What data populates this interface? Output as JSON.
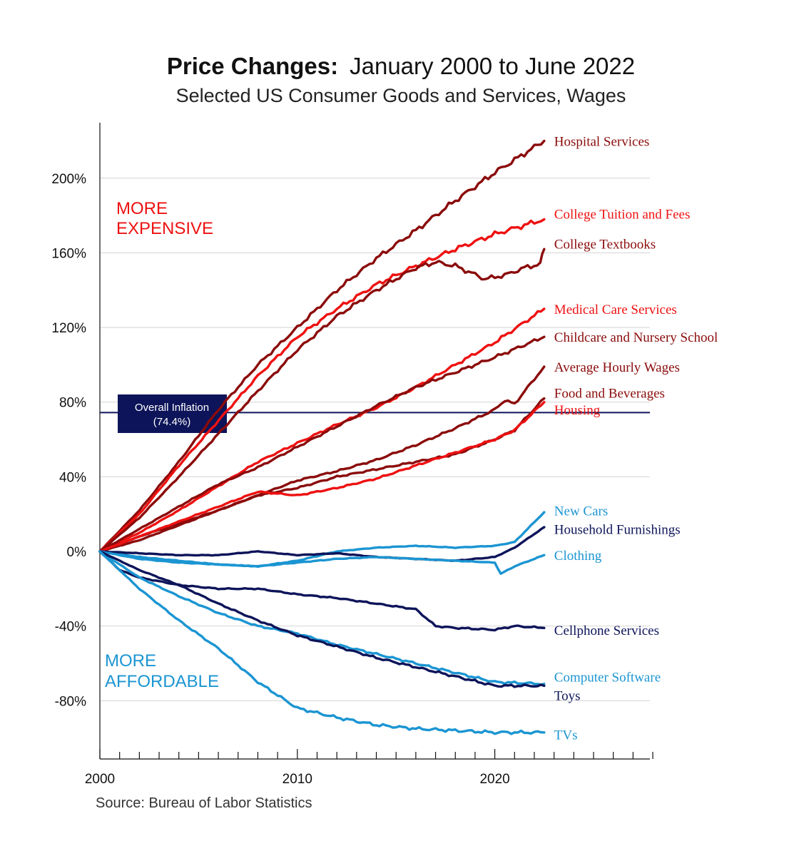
{
  "title": {
    "bold": "Price Changes:",
    "rest": "January 2000 to June 2022"
  },
  "subtitle": "Selected US Consumer Goods and Services, Wages",
  "source": "Source: Bureau of Labor Statistics",
  "region_labels": {
    "expensive": [
      "MORE",
      "EXPENSIVE"
    ],
    "affordable": [
      "MORE",
      "AFFORDABLE"
    ]
  },
  "inflation": {
    "label_lines": [
      "Overall Inflation",
      "(74.4%)"
    ],
    "value": 74.4,
    "color": "#0d1459"
  },
  "colors": {
    "dark_red": "#8b0b0b",
    "red": "#ee1111",
    "navy": "#0d1459",
    "light_blue": "#1b95d2",
    "expensive_label": "#ee1111",
    "affordable_label": "#1b95d2"
  },
  "chart_data": {
    "type": "line",
    "title": "Price Changes: January 2000 to June 2022",
    "xlabel": "",
    "ylabel": "",
    "xlim": [
      2000,
      2028
    ],
    "ylim": [
      -110,
      225
    ],
    "y_ticks": [
      200,
      160,
      120,
      80,
      40,
      0,
      -40,
      -80
    ],
    "y_tick_labels": [
      "200%",
      "160%",
      "120%",
      "80%",
      "40%",
      "0%",
      "-40%",
      "-80%"
    ],
    "x_ticks": [
      2000,
      2010,
      2020
    ],
    "x_tick_labels": [
      "2000",
      "2010",
      "2020"
    ],
    "grid": true,
    "series": [
      {
        "name": "Hospital Services",
        "color": "#8b0b0b",
        "label_y": 220,
        "points": [
          [
            2000,
            0
          ],
          [
            2002,
            22
          ],
          [
            2004,
            48
          ],
          [
            2006,
            76
          ],
          [
            2008,
            100
          ],
          [
            2010,
            120
          ],
          [
            2012,
            140
          ],
          [
            2014,
            157
          ],
          [
            2016,
            172
          ],
          [
            2018,
            188
          ],
          [
            2020,
            203
          ],
          [
            2022.5,
            220
          ]
        ]
      },
      {
        "name": "College Tuition and Fees",
        "color": "#ee1111",
        "label_y": 181,
        "points": [
          [
            2000,
            0
          ],
          [
            2002,
            20
          ],
          [
            2004,
            46
          ],
          [
            2006,
            70
          ],
          [
            2008,
            94
          ],
          [
            2010,
            115
          ],
          [
            2012,
            130
          ],
          [
            2014,
            143
          ],
          [
            2016,
            153
          ],
          [
            2018,
            162
          ],
          [
            2020,
            170
          ],
          [
            2022.5,
            178
          ]
        ]
      },
      {
        "name": "College Textbooks",
        "color": "#8b0b0b",
        "label_y": 165,
        "points": [
          [
            2000,
            0
          ],
          [
            2002,
            18
          ],
          [
            2004,
            40
          ],
          [
            2006,
            63
          ],
          [
            2008,
            86
          ],
          [
            2010,
            108
          ],
          [
            2012,
            126
          ],
          [
            2014,
            140
          ],
          [
            2016,
            152
          ],
          [
            2017,
            155
          ],
          [
            2018,
            153
          ],
          [
            2019.5,
            146
          ],
          [
            2020.5,
            148
          ],
          [
            2021.5,
            152
          ],
          [
            2022.3,
            154
          ],
          [
            2022.5,
            162
          ]
        ]
      },
      {
        "name": "Medical Care Services",
        "color": "#ee1111",
        "label_y": 130,
        "points": [
          [
            2000,
            0
          ],
          [
            2002,
            10
          ],
          [
            2004,
            22
          ],
          [
            2006,
            35
          ],
          [
            2008,
            48
          ],
          [
            2010,
            58
          ],
          [
            2012,
            68
          ],
          [
            2014,
            77
          ],
          [
            2016,
            88
          ],
          [
            2018,
            100
          ],
          [
            2020,
            112
          ],
          [
            2022.5,
            130
          ]
        ]
      },
      {
        "name": "Childcare and Nursery School",
        "color": "#8b0b0b",
        "label_y": 115,
        "points": [
          [
            2000,
            0
          ],
          [
            2002,
            12
          ],
          [
            2004,
            24
          ],
          [
            2006,
            36
          ],
          [
            2008,
            45
          ],
          [
            2010,
            56
          ],
          [
            2012,
            67
          ],
          [
            2014,
            78
          ],
          [
            2016,
            88
          ],
          [
            2018,
            96
          ],
          [
            2020,
            104
          ],
          [
            2022.5,
            115
          ]
        ]
      },
      {
        "name": "Average Hourly Wages",
        "color": "#8b0b0b",
        "label_y": 99,
        "points": [
          [
            2000,
            0
          ],
          [
            2002,
            8
          ],
          [
            2004,
            15
          ],
          [
            2006,
            22
          ],
          [
            2008,
            30
          ],
          [
            2010,
            38
          ],
          [
            2012,
            43
          ],
          [
            2014,
            49
          ],
          [
            2016,
            57
          ],
          [
            2018,
            66
          ],
          [
            2020,
            76
          ],
          [
            2020.5,
            81
          ],
          [
            2021,
            79
          ],
          [
            2022.5,
            99
          ]
        ]
      },
      {
        "name": "Food and Beverages",
        "color": "#8b0b0b",
        "label_y": 85,
        "points": [
          [
            2000,
            0
          ],
          [
            2002,
            6
          ],
          [
            2004,
            14
          ],
          [
            2006,
            22
          ],
          [
            2008,
            30
          ],
          [
            2010,
            34
          ],
          [
            2012,
            40
          ],
          [
            2014,
            44
          ],
          [
            2016,
            48
          ],
          [
            2018,
            52
          ],
          [
            2020,
            60
          ],
          [
            2021,
            65
          ],
          [
            2022.5,
            82
          ]
        ]
      },
      {
        "name": "Housing",
        "color": "#ee1111",
        "label_y": 76,
        "points": [
          [
            2000,
            0
          ],
          [
            2002,
            8
          ],
          [
            2004,
            16
          ],
          [
            2006,
            24
          ],
          [
            2008,
            32
          ],
          [
            2009,
            31
          ],
          [
            2010,
            30
          ],
          [
            2012,
            34
          ],
          [
            2014,
            39
          ],
          [
            2016,
            46
          ],
          [
            2018,
            53
          ],
          [
            2020,
            60
          ],
          [
            2021,
            65
          ],
          [
            2022.5,
            80
          ]
        ]
      },
      {
        "name": "New Cars",
        "color": "#1b95d2",
        "label_y": 22,
        "points": [
          [
            2000,
            0
          ],
          [
            2002,
            -3
          ],
          [
            2004,
            -5
          ],
          [
            2006,
            -7
          ],
          [
            2008,
            -8
          ],
          [
            2010,
            -5
          ],
          [
            2012,
            0
          ],
          [
            2014,
            2
          ],
          [
            2016,
            3
          ],
          [
            2018,
            2
          ],
          [
            2020,
            3
          ],
          [
            2021,
            5
          ],
          [
            2022.5,
            21
          ]
        ]
      },
      {
        "name": "Household Furnishings",
        "color": "#0d1459",
        "label_y": 12,
        "points": [
          [
            2000,
            0
          ],
          [
            2002,
            -1
          ],
          [
            2004,
            -2
          ],
          [
            2006,
            -2
          ],
          [
            2008,
            0
          ],
          [
            2010,
            -2
          ],
          [
            2012,
            -1
          ],
          [
            2014,
            -3
          ],
          [
            2016,
            -4
          ],
          [
            2018,
            -5
          ],
          [
            2020,
            -3
          ],
          [
            2021,
            2
          ],
          [
            2022.5,
            13
          ]
        ]
      },
      {
        "name": "Clothing",
        "color": "#1b95d2",
        "label_y": -2,
        "points": [
          [
            2000,
            0
          ],
          [
            2002,
            -4
          ],
          [
            2004,
            -6
          ],
          [
            2006,
            -7
          ],
          [
            2008,
            -8
          ],
          [
            2010,
            -6
          ],
          [
            2012,
            -4
          ],
          [
            2014,
            -3
          ],
          [
            2016,
            -4
          ],
          [
            2018,
            -5
          ],
          [
            2020,
            -6
          ],
          [
            2020.3,
            -12
          ],
          [
            2021,
            -8
          ],
          [
            2022.5,
            -2
          ]
        ]
      },
      {
        "name": "Cellphone Services",
        "color": "#0d1459",
        "label_y": -42,
        "points": [
          [
            2000,
            0
          ],
          [
            2001,
            -10
          ],
          [
            2002,
            -14
          ],
          [
            2004,
            -18
          ],
          [
            2006,
            -20
          ],
          [
            2008,
            -20
          ],
          [
            2010,
            -23
          ],
          [
            2012,
            -25
          ],
          [
            2014,
            -28
          ],
          [
            2016,
            -31
          ],
          [
            2017,
            -40
          ],
          [
            2018,
            -41
          ],
          [
            2020,
            -42
          ],
          [
            2021,
            -40
          ],
          [
            2022.5,
            -41
          ]
        ]
      },
      {
        "name": "Computer Software",
        "color": "#1b95d2",
        "label_y": -67,
        "points": [
          [
            2000,
            0
          ],
          [
            2002,
            -14
          ],
          [
            2004,
            -24
          ],
          [
            2006,
            -33
          ],
          [
            2008,
            -40
          ],
          [
            2010,
            -44
          ],
          [
            2012,
            -50
          ],
          [
            2014,
            -55
          ],
          [
            2016,
            -60
          ],
          [
            2018,
            -65
          ],
          [
            2020,
            -70
          ],
          [
            2022.5,
            -71
          ]
        ]
      },
      {
        "name": "Toys",
        "color": "#0d1459",
        "label_y": -77,
        "points": [
          [
            2000,
            0
          ],
          [
            2002,
            -10
          ],
          [
            2004,
            -18
          ],
          [
            2006,
            -28
          ],
          [
            2008,
            -37
          ],
          [
            2010,
            -45
          ],
          [
            2012,
            -51
          ],
          [
            2014,
            -57
          ],
          [
            2016,
            -62
          ],
          [
            2018,
            -67
          ],
          [
            2020,
            -72
          ],
          [
            2022.5,
            -72
          ]
        ]
      },
      {
        "name": "TVs",
        "color": "#1b95d2",
        "label_y": -98,
        "points": [
          [
            2000,
            0
          ],
          [
            2002,
            -20
          ],
          [
            2004,
            -37
          ],
          [
            2006,
            -52
          ],
          [
            2008,
            -70
          ],
          [
            2010,
            -84
          ],
          [
            2012,
            -89
          ],
          [
            2014,
            -93
          ],
          [
            2016,
            -95
          ],
          [
            2018,
            -96
          ],
          [
            2020,
            -97
          ],
          [
            2022.5,
            -97
          ]
        ]
      }
    ]
  }
}
